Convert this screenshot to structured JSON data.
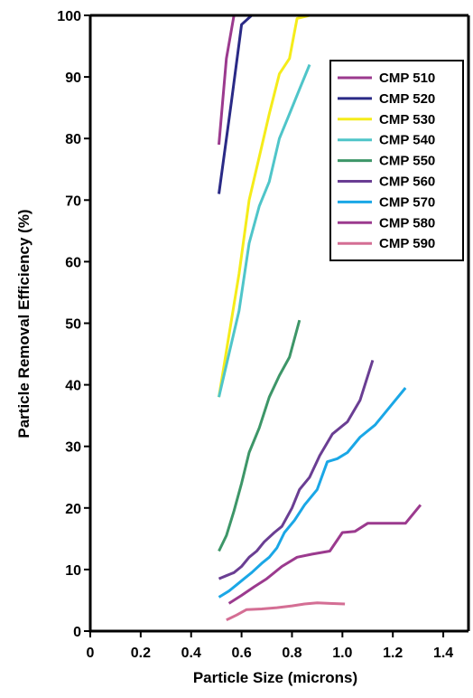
{
  "chart_data": {
    "type": "line",
    "xlabel": "Particle Size (microns)",
    "ylabel": "Particle Removal Efficiency (%)",
    "xlim": [
      0,
      1.5
    ],
    "ylim": [
      0,
      100
    ],
    "x_ticks": [
      "0",
      "0.2",
      "0.4",
      "0.6",
      "0.8",
      "1.0",
      "1.2",
      "1.4"
    ],
    "x_tick_values": [
      0,
      0.2,
      0.4,
      0.6,
      0.8,
      1.0,
      1.2,
      1.4
    ],
    "y_ticks": [
      "0",
      "10",
      "20",
      "30",
      "40",
      "50",
      "60",
      "70",
      "80",
      "90",
      "100"
    ],
    "y_tick_values": [
      0,
      10,
      20,
      30,
      40,
      50,
      60,
      70,
      80,
      90,
      100
    ],
    "grid": false,
    "legend_position": "top-right",
    "series": [
      {
        "name": "CMP 510",
        "color": "#9b3a8e",
        "x": [
          0.51,
          0.54,
          0.57,
          0.58
        ],
        "y": [
          79,
          93,
          100,
          100
        ]
      },
      {
        "name": "CMP 520",
        "color": "#2a2a86",
        "x": [
          0.51,
          0.56,
          0.6,
          0.64,
          0.67
        ],
        "y": [
          71,
          86,
          98.5,
          100,
          100
        ]
      },
      {
        "name": "CMP 530",
        "color": "#f5ec1a",
        "x": [
          0.51,
          0.55,
          0.59,
          0.63,
          0.67,
          0.71,
          0.75,
          0.79,
          0.82,
          0.87
        ],
        "y": [
          38,
          48,
          58,
          70,
          77,
          84,
          90.5,
          93,
          99.5,
          100
        ]
      },
      {
        "name": "CMP 540",
        "color": "#4fc5c9",
        "x": [
          0.51,
          0.55,
          0.59,
          0.63,
          0.67,
          0.71,
          0.75,
          0.79,
          0.83,
          0.87
        ],
        "y": [
          38,
          45,
          52,
          63,
          69,
          73,
          80,
          84,
          88,
          92
        ]
      },
      {
        "name": "CMP 550",
        "color": "#3d9668",
        "x": [
          0.51,
          0.54,
          0.57,
          0.6,
          0.63,
          0.67,
          0.71,
          0.75,
          0.79,
          0.83
        ],
        "y": [
          13,
          15.5,
          19.5,
          24,
          29,
          33,
          38,
          41.5,
          44.5,
          50.5
        ]
      },
      {
        "name": "CMP 560",
        "color": "#6a3e93",
        "x": [
          0.51,
          0.54,
          0.57,
          0.6,
          0.63,
          0.66,
          0.69,
          0.73,
          0.76,
          0.8,
          0.83,
          0.87,
          0.91,
          0.96,
          1.02,
          1.07,
          1.12
        ],
        "y": [
          8.5,
          9,
          9.5,
          10.5,
          12,
          13,
          14.5,
          16,
          17,
          20,
          23,
          25,
          28.5,
          32,
          34,
          37.5,
          44
        ]
      },
      {
        "name": "CMP 570",
        "color": "#1aa7e6",
        "x": [
          0.51,
          0.55,
          0.58,
          0.61,
          0.64,
          0.68,
          0.71,
          0.74,
          0.77,
          0.81,
          0.85,
          0.9,
          0.94,
          0.98,
          1.02,
          1.07,
          1.13,
          1.19,
          1.25
        ],
        "y": [
          5.5,
          6.5,
          7.5,
          8.5,
          9.5,
          11,
          12,
          13.5,
          16,
          18,
          20.5,
          23,
          27.5,
          28,
          29,
          31.5,
          33.5,
          36.5,
          39.5
        ]
      },
      {
        "name": "CMP 580",
        "color": "#9b3a8e",
        "x": [
          0.55,
          0.6,
          0.65,
          0.7,
          0.76,
          0.82,
          0.88,
          0.95,
          1.0,
          1.05,
          1.1,
          1.18,
          1.25,
          1.31
        ],
        "y": [
          4.5,
          5.8,
          7.2,
          8.5,
          10.5,
          12,
          12.5,
          13,
          16,
          16.2,
          17.5,
          17.5,
          17.5,
          20.5
        ]
      },
      {
        "name": "CMP 590",
        "color": "#d46e94",
        "x": [
          0.54,
          0.58,
          0.62,
          0.68,
          0.74,
          0.8,
          0.85,
          0.9,
          0.95,
          1.01
        ],
        "y": [
          1.8,
          2.6,
          3.5,
          3.6,
          3.8,
          4.1,
          4.4,
          4.6,
          4.5,
          4.4
        ]
      }
    ]
  }
}
